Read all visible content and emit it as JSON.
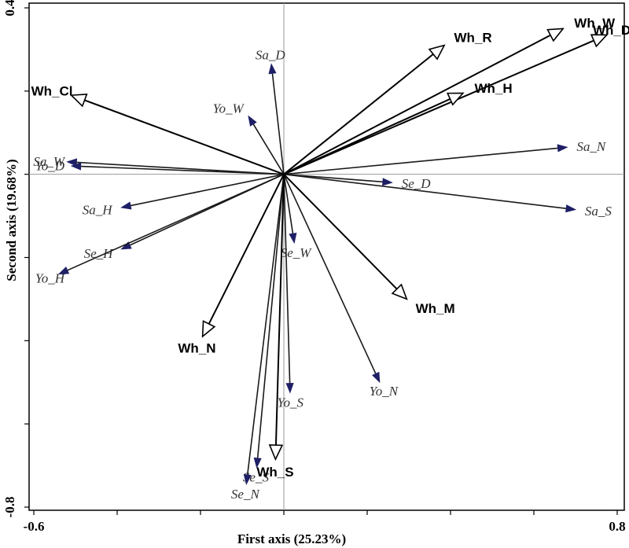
{
  "chart_data": {
    "type": "scatter",
    "xlabel": "First axis (25.23%)",
    "ylabel": "Second axis (19.68%)",
    "xlim": [
      -0.6,
      0.8
    ],
    "ylim": [
      -0.8,
      0.4
    ],
    "x_ticks": [
      {
        "value": -0.6,
        "label": "-0.6"
      },
      {
        "value": 0.8,
        "label": "0.8"
      }
    ],
    "y_ticks": [
      {
        "value": 0.4,
        "label": "0.4"
      },
      {
        "value": -0.8,
        "label": "-0.8"
      }
    ],
    "x_minor_ticks": [
      -0.4,
      -0.2,
      0.2,
      0.4,
      0.6
    ],
    "y_minor_ticks": [
      0.2,
      -0.2,
      -0.4,
      -0.6
    ],
    "grid": false,
    "species_vectors": [
      {
        "label": "Sa_D",
        "x": -0.03,
        "y": 0.265
      },
      {
        "label": "Yo_W",
        "x": -0.085,
        "y": 0.14
      },
      {
        "label": "Sa_W",
        "x": -0.52,
        "y": 0.03
      },
      {
        "label": "Yo_D",
        "x": -0.51,
        "y": 0.02
      },
      {
        "label": "Sa_H",
        "x": -0.39,
        "y": -0.08
      },
      {
        "label": "Se_H",
        "x": -0.39,
        "y": -0.18
      },
      {
        "label": "Yo_H",
        "x": -0.54,
        "y": -0.24
      },
      {
        "label": "Sa_N",
        "x": 0.68,
        "y": 0.065
      },
      {
        "label": "Se_D",
        "x": 0.26,
        "y": -0.02
      },
      {
        "label": "Sa_S",
        "x": 0.7,
        "y": -0.085
      },
      {
        "label": "Se_W",
        "x": 0.025,
        "y": -0.165
      },
      {
        "label": "Yo_S",
        "x": 0.015,
        "y": -0.525
      },
      {
        "label": "Yo_N",
        "x": 0.23,
        "y": -0.5
      },
      {
        "label": "Se_S",
        "x": -0.065,
        "y": -0.705
      },
      {
        "label": "Se_N",
        "x": -0.09,
        "y": -0.745
      }
    ],
    "environment_vectors": [
      {
        "label": "Wh_W",
        "x": 0.67,
        "y": 0.35
      },
      {
        "label": "Wh_D",
        "x": 0.775,
        "y": 0.335
      },
      {
        "label": "Wh_R",
        "x": 0.385,
        "y": 0.31
      },
      {
        "label": "Wh_H",
        "x": 0.43,
        "y": 0.195
      },
      {
        "label": "Wh_Cl",
        "x": -0.51,
        "y": 0.19
      },
      {
        "label": "Wh_M",
        "x": 0.295,
        "y": -0.3
      },
      {
        "label": "Wh_N",
        "x": -0.195,
        "y": -0.39
      },
      {
        "label": "Wh_S",
        "x": -0.02,
        "y": -0.685
      }
    ]
  }
}
